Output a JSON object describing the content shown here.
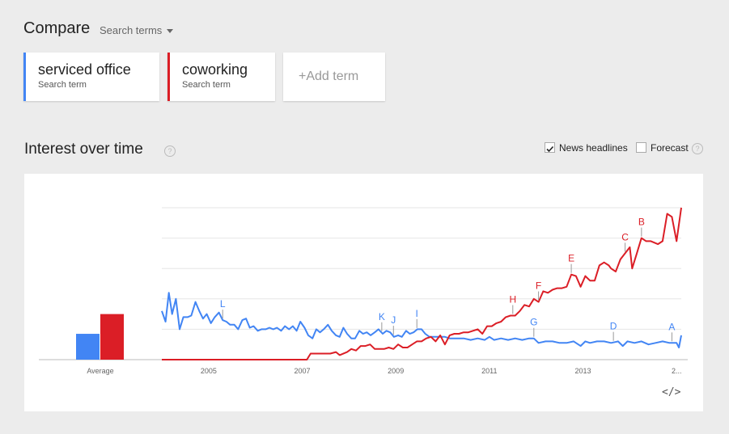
{
  "compare": {
    "title": "Compare",
    "dropdown_label": "Search terms"
  },
  "terms": [
    {
      "name": "serviced office",
      "sub": "Search term",
      "color": "#4285f4"
    },
    {
      "name": "coworking",
      "sub": "Search term",
      "color": "#db1e26"
    }
  ],
  "add_term": "+Add term",
  "section": {
    "title": "Interest over time",
    "news_headlines_label": "News headlines",
    "news_headlines_checked": true,
    "forecast_label": "Forecast",
    "forecast_checked": false,
    "help_glyph": "?"
  },
  "average_label": "Average",
  "embed_label": "</>",
  "chart_data": {
    "type": "line",
    "xlabel": "",
    "ylabel": "",
    "x_range": [
      2004.0,
      2015.1
    ],
    "ylim": [
      0,
      100
    ],
    "grid": true,
    "x_ticks": [
      "2005",
      "2007",
      "2009",
      "2011",
      "2013",
      "2..."
    ],
    "x_tick_positions": [
      2005,
      2007,
      2009,
      2011,
      2013,
      2015
    ],
    "average": {
      "serviced office": 17,
      "coworking": 30
    },
    "series": [
      {
        "name": "serviced office",
        "color": "#4285f4",
        "points": [
          [
            2004.0,
            32
          ],
          [
            2004.08,
            25
          ],
          [
            2004.15,
            44
          ],
          [
            2004.22,
            30
          ],
          [
            2004.3,
            40
          ],
          [
            2004.38,
            20
          ],
          [
            2004.46,
            28
          ],
          [
            2004.55,
            28
          ],
          [
            2004.63,
            29
          ],
          [
            2004.72,
            38
          ],
          [
            2004.8,
            32
          ],
          [
            2004.88,
            27
          ],
          [
            2004.96,
            30
          ],
          [
            2005.05,
            24
          ],
          [
            2005.13,
            28
          ],
          [
            2005.22,
            31
          ],
          [
            2005.3,
            26
          ],
          [
            2005.38,
            25
          ],
          [
            2005.46,
            23
          ],
          [
            2005.55,
            23
          ],
          [
            2005.63,
            20
          ],
          [
            2005.72,
            26
          ],
          [
            2005.8,
            27
          ],
          [
            2005.88,
            21
          ],
          [
            2005.96,
            22
          ],
          [
            2006.05,
            19
          ],
          [
            2006.13,
            20
          ],
          [
            2006.22,
            20
          ],
          [
            2006.3,
            21
          ],
          [
            2006.38,
            20
          ],
          [
            2006.46,
            21
          ],
          [
            2006.55,
            19
          ],
          [
            2006.63,
            22
          ],
          [
            2006.72,
            20
          ],
          [
            2006.8,
            22
          ],
          [
            2006.88,
            19
          ],
          [
            2006.96,
            25
          ],
          [
            2007.05,
            21
          ],
          [
            2007.13,
            16
          ],
          [
            2007.22,
            14
          ],
          [
            2007.3,
            20
          ],
          [
            2007.38,
            18
          ],
          [
            2007.46,
            20
          ],
          [
            2007.55,
            23
          ],
          [
            2007.63,
            19
          ],
          [
            2007.72,
            16
          ],
          [
            2007.8,
            15
          ],
          [
            2007.88,
            21
          ],
          [
            2007.96,
            17
          ],
          [
            2008.05,
            14
          ],
          [
            2008.13,
            14
          ],
          [
            2008.22,
            19
          ],
          [
            2008.3,
            17
          ],
          [
            2008.38,
            18
          ],
          [
            2008.46,
            16
          ],
          [
            2008.55,
            18
          ],
          [
            2008.63,
            20
          ],
          [
            2008.72,
            17
          ],
          [
            2008.8,
            19
          ],
          [
            2008.88,
            18
          ],
          [
            2008.96,
            15
          ],
          [
            2009.05,
            16
          ],
          [
            2009.13,
            15
          ],
          [
            2009.22,
            19
          ],
          [
            2009.3,
            17
          ],
          [
            2009.38,
            18
          ],
          [
            2009.46,
            20
          ],
          [
            2009.55,
            20
          ],
          [
            2009.63,
            17
          ],
          [
            2009.72,
            15
          ],
          [
            2009.8,
            15
          ],
          [
            2009.88,
            15
          ],
          [
            2009.96,
            15
          ],
          [
            2010.05,
            15
          ],
          [
            2010.15,
            14
          ],
          [
            2010.3,
            14
          ],
          [
            2010.45,
            14
          ],
          [
            2010.6,
            13
          ],
          [
            2010.75,
            14
          ],
          [
            2010.9,
            13
          ],
          [
            2011.0,
            15
          ],
          [
            2011.1,
            13
          ],
          [
            2011.25,
            14
          ],
          [
            2011.4,
            13
          ],
          [
            2011.55,
            14
          ],
          [
            2011.7,
            13
          ],
          [
            2011.85,
            14
          ],
          [
            2011.95,
            14
          ],
          [
            2012.05,
            11
          ],
          [
            2012.2,
            12
          ],
          [
            2012.35,
            12
          ],
          [
            2012.5,
            11
          ],
          [
            2012.65,
            11
          ],
          [
            2012.8,
            12
          ],
          [
            2012.95,
            9
          ],
          [
            2013.05,
            12
          ],
          [
            2013.15,
            11
          ],
          [
            2013.3,
            12
          ],
          [
            2013.45,
            12
          ],
          [
            2013.6,
            11
          ],
          [
            2013.75,
            12
          ],
          [
            2013.85,
            9
          ],
          [
            2013.95,
            12
          ],
          [
            2014.1,
            11
          ],
          [
            2014.25,
            12
          ],
          [
            2014.4,
            10
          ],
          [
            2014.55,
            11
          ],
          [
            2014.7,
            12
          ],
          [
            2014.85,
            11
          ],
          [
            2015.0,
            11
          ],
          [
            2015.05,
            8
          ],
          [
            2015.1,
            16
          ]
        ]
      },
      {
        "name": "coworking",
        "color": "#db1e26",
        "points": [
          [
            2004.0,
            0
          ],
          [
            2007.1,
            0
          ],
          [
            2007.18,
            4
          ],
          [
            2007.4,
            4
          ],
          [
            2007.6,
            4
          ],
          [
            2007.72,
            5
          ],
          [
            2007.8,
            3
          ],
          [
            2007.96,
            5
          ],
          [
            2008.05,
            7
          ],
          [
            2008.15,
            6
          ],
          [
            2008.25,
            9
          ],
          [
            2008.35,
            9
          ],
          [
            2008.45,
            10
          ],
          [
            2008.55,
            7
          ],
          [
            2008.65,
            7
          ],
          [
            2008.75,
            7
          ],
          [
            2008.85,
            8
          ],
          [
            2008.95,
            7
          ],
          [
            2009.05,
            10
          ],
          [
            2009.15,
            8
          ],
          [
            2009.25,
            8
          ],
          [
            2009.35,
            10
          ],
          [
            2009.45,
            12
          ],
          [
            2009.55,
            12
          ],
          [
            2009.65,
            14
          ],
          [
            2009.75,
            15
          ],
          [
            2009.85,
            12
          ],
          [
            2009.95,
            16
          ],
          [
            2010.05,
            10
          ],
          [
            2010.15,
            16
          ],
          [
            2010.25,
            17
          ],
          [
            2010.35,
            17
          ],
          [
            2010.45,
            18
          ],
          [
            2010.55,
            18
          ],
          [
            2010.65,
            19
          ],
          [
            2010.75,
            20
          ],
          [
            2010.85,
            17
          ],
          [
            2010.95,
            22
          ],
          [
            2011.05,
            22
          ],
          [
            2011.15,
            24
          ],
          [
            2011.25,
            25
          ],
          [
            2011.35,
            28
          ],
          [
            2011.45,
            29
          ],
          [
            2011.55,
            29
          ],
          [
            2011.65,
            32
          ],
          [
            2011.75,
            36
          ],
          [
            2011.85,
            35
          ],
          [
            2011.95,
            40
          ],
          [
            2012.05,
            38
          ],
          [
            2012.15,
            45
          ],
          [
            2012.25,
            44
          ],
          [
            2012.35,
            46
          ],
          [
            2012.45,
            47
          ],
          [
            2012.55,
            47
          ],
          [
            2012.65,
            48
          ],
          [
            2012.75,
            56
          ],
          [
            2012.85,
            55
          ],
          [
            2012.95,
            48
          ],
          [
            2013.05,
            55
          ],
          [
            2013.15,
            52
          ],
          [
            2013.25,
            52
          ],
          [
            2013.35,
            62
          ],
          [
            2013.45,
            64
          ],
          [
            2013.55,
            62
          ],
          [
            2013.6,
            60
          ],
          [
            2013.7,
            58
          ],
          [
            2013.8,
            66
          ],
          [
            2013.9,
            70
          ],
          [
            2014.0,
            74
          ],
          [
            2014.05,
            60
          ],
          [
            2014.15,
            70
          ],
          [
            2014.25,
            80
          ],
          [
            2014.35,
            78
          ],
          [
            2014.45,
            78
          ],
          [
            2014.6,
            76
          ],
          [
            2014.7,
            78
          ],
          [
            2014.8,
            96
          ],
          [
            2014.9,
            94
          ],
          [
            2015.0,
            78
          ],
          [
            2015.1,
            100
          ]
        ]
      }
    ],
    "annotations": [
      {
        "label": "L",
        "x": 2005.3,
        "series": "serviced office"
      },
      {
        "label": "K",
        "x": 2008.7,
        "series": "serviced office"
      },
      {
        "label": "J",
        "x": 2008.95,
        "series": "serviced office"
      },
      {
        "label": "I",
        "x": 2009.45,
        "series": "serviced office"
      },
      {
        "label": "G",
        "x": 2011.95,
        "series": "serviced office"
      },
      {
        "label": "D",
        "x": 2013.65,
        "series": "serviced office"
      },
      {
        "label": "A",
        "x": 2014.9,
        "series": "serviced office"
      },
      {
        "label": "H",
        "x": 2011.5,
        "series": "coworking"
      },
      {
        "label": "F",
        "x": 2012.05,
        "series": "coworking"
      },
      {
        "label": "E",
        "x": 2012.75,
        "series": "coworking"
      },
      {
        "label": "C",
        "x": 2013.9,
        "series": "coworking"
      },
      {
        "label": "B",
        "x": 2014.25,
        "series": "coworking"
      }
    ]
  }
}
